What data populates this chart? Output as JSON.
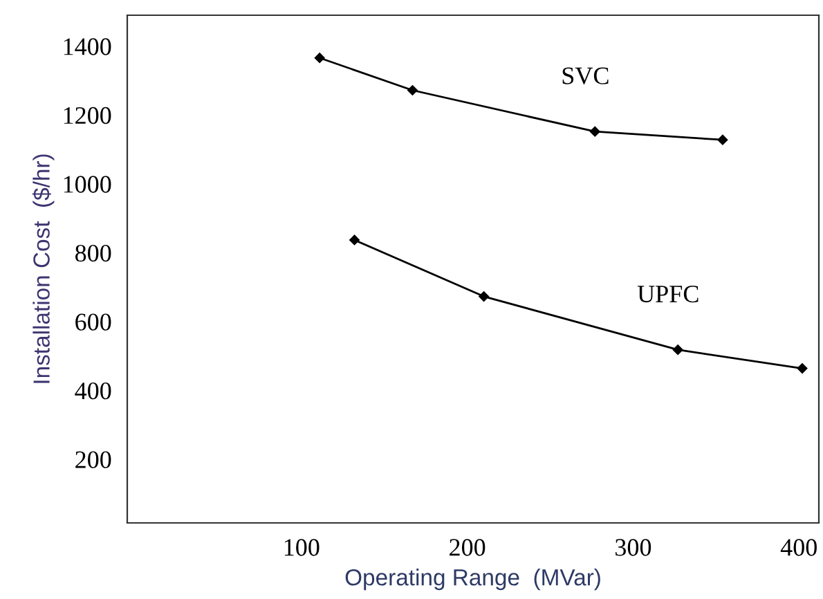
{
  "chart_data": {
    "type": "line",
    "xlabel": "Operating Range  (MVar)",
    "ylabel": "Installation Cost  ($/hr)",
    "xlim": [
      -5,
      412
    ],
    "ylim": [
      15,
      1490
    ],
    "xticks": [
      100,
      200,
      300,
      400
    ],
    "yticks": [
      200,
      400,
      600,
      800,
      1000,
      1200,
      1400
    ],
    "grid": false,
    "legend": false,
    "marker": "diamond",
    "line_style": "solid",
    "series": [
      {
        "name": "SVC",
        "color": "#000000",
        "x": [
          111,
          167,
          277,
          354
        ],
        "values": [
          1366,
          1272,
          1152,
          1128
        ]
      },
      {
        "name": "UPFC",
        "color": "#000000",
        "x": [
          132,
          210,
          327,
          402
        ],
        "values": [
          837,
          673,
          518,
          464
        ]
      }
    ]
  }
}
